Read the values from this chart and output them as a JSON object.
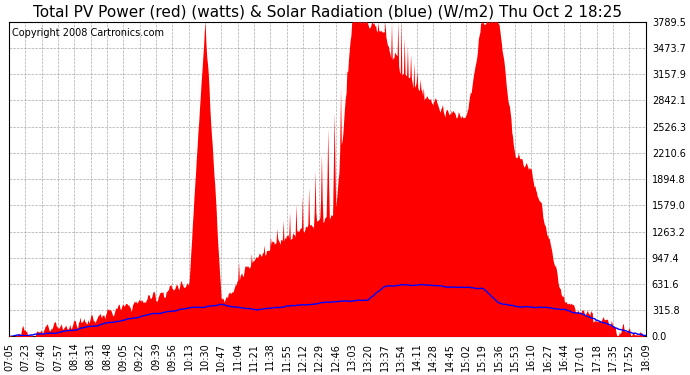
{
  "title": "Total PV Power (red) (watts) & Solar Radiation (blue) (W/m2) Thu Oct 2 18:25",
  "copyright_text": "Copyright 2008 Cartronics.com",
  "background_color": "#ffffff",
  "plot_bg_color": "#ffffff",
  "grid_color": "#888888",
  "y_ticks": [
    0.0,
    315.8,
    631.6,
    947.4,
    1263.2,
    1579.0,
    1894.8,
    2210.6,
    2526.3,
    2842.1,
    3157.9,
    3473.7,
    3789.5
  ],
  "ylim": [
    0,
    3789.5
  ],
  "x_labels": [
    "07:05",
    "07:23",
    "07:40",
    "07:57",
    "08:14",
    "08:31",
    "08:48",
    "09:05",
    "09:22",
    "09:39",
    "09:56",
    "10:13",
    "10:30",
    "10:47",
    "11:04",
    "11:21",
    "11:38",
    "11:55",
    "12:12",
    "12:29",
    "12:46",
    "13:03",
    "13:20",
    "13:37",
    "13:54",
    "14:11",
    "14:28",
    "14:45",
    "15:02",
    "15:19",
    "15:36",
    "15:53",
    "16:10",
    "16:27",
    "16:44",
    "17:01",
    "17:18",
    "17:35",
    "17:52",
    "18:09"
  ],
  "pv_color": "red",
  "solar_color": "blue",
  "title_fontsize": 11,
  "axis_fontsize": 7,
  "copyright_fontsize": 7
}
